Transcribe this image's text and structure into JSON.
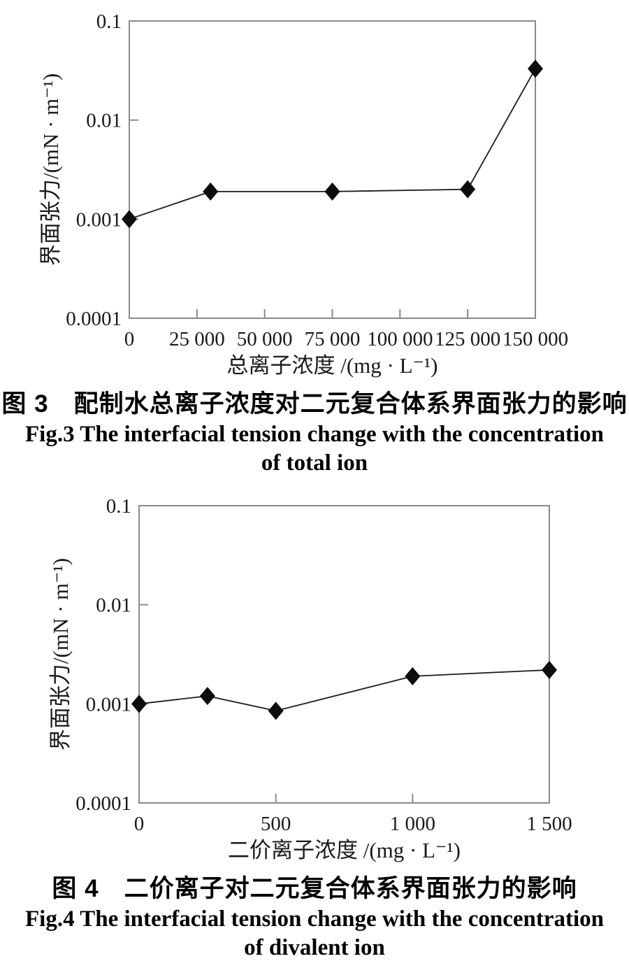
{
  "colors": {
    "background": "#ffffff",
    "axis_box": "#8a8a8a",
    "data_line": "#1a1a1a",
    "marker": "#0d0d0d",
    "text": "#1a1a1a"
  },
  "chart_data": [
    {
      "id": "fig3",
      "type": "line",
      "yscale": "log",
      "grid": false,
      "legend": "none",
      "marker": "diamond",
      "x": [
        0,
        30000,
        75000,
        125000,
        150000
      ],
      "y": [
        0.001,
        0.0019,
        0.0019,
        0.002,
        0.033
      ],
      "xlim": [
        0,
        150000
      ],
      "ylim": [
        0.0001,
        0.1
      ],
      "x_ticks": [
        0,
        25000,
        50000,
        75000,
        100000,
        125000,
        150000
      ],
      "x_tick_labels": [
        "0",
        "25 000",
        "50 000",
        "75 000",
        "100 000",
        "125 000",
        "150 000"
      ],
      "y_ticks": [
        0.1,
        0.01,
        0.001,
        0.0001
      ],
      "y_tick_labels": [
        "0.1",
        "0.01",
        "0.001",
        "0.0001"
      ],
      "xlabel": "总离子浓度 /(mg · L⁻¹)",
      "ylabel": "界面张力/(mN · m⁻¹)",
      "caption_zh": "图 3　配制水总离子浓度对二元复合体系界面张力的影响",
      "caption_en_line1": "Fig.3 The interfacial tension change with the concentration",
      "caption_en_line2": "of total ion"
    },
    {
      "id": "fig4",
      "type": "line",
      "yscale": "log",
      "grid": false,
      "legend": "none",
      "marker": "diamond",
      "x": [
        0,
        250,
        500,
        1000,
        1500
      ],
      "y": [
        0.001,
        0.0012,
        0.00085,
        0.0019,
        0.0022
      ],
      "xlim": [
        0,
        1500
      ],
      "ylim": [
        0.0001,
        0.1
      ],
      "x_ticks": [
        0,
        500,
        1000,
        1500
      ],
      "x_tick_labels": [
        "0",
        "500",
        "1 000",
        "1 500"
      ],
      "y_ticks": [
        0.1,
        0.01,
        0.001,
        0.0001
      ],
      "y_tick_labels": [
        "0.1",
        "0.01",
        "0.001",
        "0.0001"
      ],
      "xlabel": "二价离子浓度 /(mg · L⁻¹)",
      "ylabel": "界面张力/(mN · m⁻¹)",
      "caption_zh": "图 4　二价离子对二元复合体系界面张力的影响",
      "caption_en_line1": "Fig.4 The interfacial tension change with the concentration",
      "caption_en_line2": "of divalent ion"
    }
  ]
}
